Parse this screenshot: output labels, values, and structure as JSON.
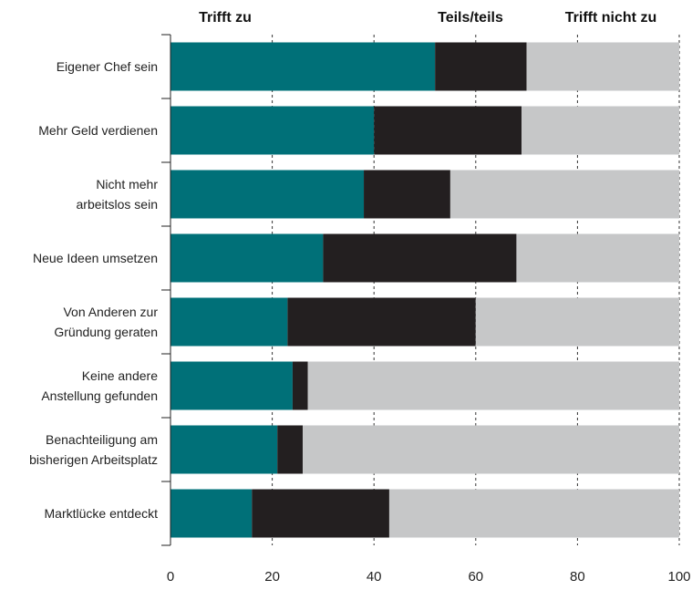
{
  "chart_data": {
    "type": "bar",
    "orientation": "horizontal",
    "stacked": true,
    "legend_position": "top",
    "grid": "vertical dashed",
    "xlim": [
      0,
      100
    ],
    "xticks": [
      0,
      20,
      40,
      60,
      80,
      100
    ],
    "categories": [
      [
        "Eigener Chef sein"
      ],
      [
        "Mehr Geld verdienen"
      ],
      [
        "Nicht mehr",
        "arbeitslos sein"
      ],
      [
        "Neue Ideen umsetzen"
      ],
      [
        "Von Anderen zur",
        "Gründung geraten"
      ],
      [
        "Keine andere",
        "Anstellung gefunden"
      ],
      [
        "Benachteiligung am",
        "bisherigen Arbeitsplatz"
      ],
      [
        "Marktlücke entdeckt"
      ]
    ],
    "series": [
      {
        "name": "Trifft zu",
        "color": "#007078",
        "values": [
          52,
          40,
          38,
          30,
          23,
          24,
          21,
          16
        ]
      },
      {
        "name": "Teils/teils",
        "color": "#231f20",
        "values": [
          18,
          29,
          17,
          38,
          37,
          3,
          5,
          27
        ]
      },
      {
        "name": "Trifft nicht zu",
        "color": "#c6c7c8",
        "values": [
          30,
          31,
          45,
          32,
          40,
          73,
          74,
          57
        ]
      }
    ]
  }
}
